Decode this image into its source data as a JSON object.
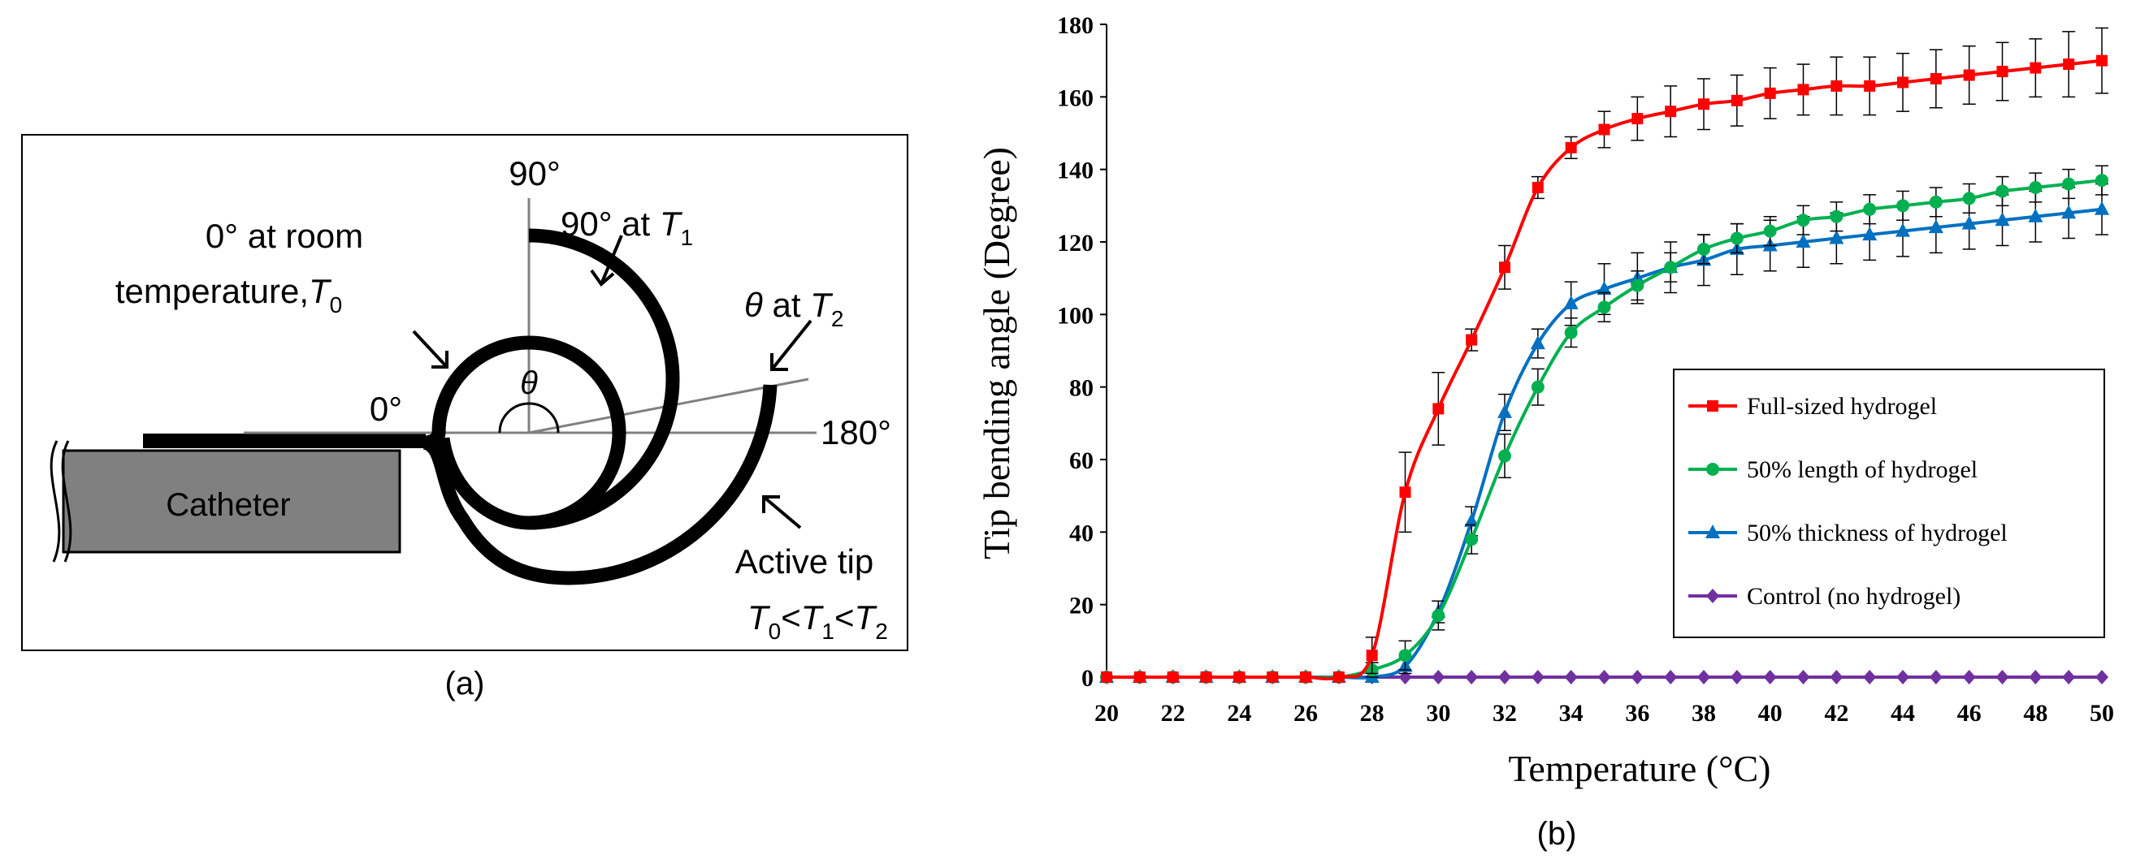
{
  "panel_a": {
    "label": "(a)",
    "deg90_top": "90°",
    "deg0": "0°",
    "deg180": "180°",
    "room_line1": "0° at room",
    "room_line2": "temperature, ",
    "room_T": "T",
    "room_sub": "0",
    "t1_prefix": "90° at ",
    "t1_T": "T",
    "t1_sub": "1",
    "t2_theta": "θ",
    "t2_mid": " at ",
    "t2_T": "T",
    "t2_sub": "2",
    "theta": "θ",
    "catheter": "Catheter",
    "active_tip": "Active tip",
    "ineq_T0": "T",
    "ineq_sub0": "0",
    "ineq_lt1": "<",
    "ineq_T1": "T",
    "ineq_sub1": "1",
    "ineq_lt2": "<",
    "ineq_T2": "T",
    "ineq_sub2": "2"
  },
  "panel_b": {
    "label": "(b)"
  },
  "chart_data": {
    "type": "line",
    "xlabel": "Temperature (°C)",
    "ylabel": "Tip bending angle (Degree)",
    "xlim": [
      20,
      50
    ],
    "ylim": [
      0,
      180
    ],
    "x_ticks": [
      "20",
      "22",
      "24",
      "26",
      "28",
      "30",
      "32",
      "34",
      "36",
      "38",
      "40",
      "42",
      "44",
      "46",
      "48",
      "50"
    ],
    "y_ticks": [
      "0",
      "20",
      "40",
      "60",
      "80",
      "100",
      "120",
      "140",
      "160",
      "180"
    ],
    "x": [
      20,
      21,
      22,
      23,
      24,
      25,
      26,
      27,
      28,
      29,
      30,
      31,
      32,
      33,
      34,
      35,
      36,
      37,
      38,
      39,
      40,
      41,
      42,
      43,
      44,
      45,
      46,
      47,
      48,
      49,
      50
    ],
    "legend_position": "right",
    "series": [
      {
        "name": "Full-sized hydrogel",
        "color": "#ff0000",
        "marker": "square",
        "values": [
          0,
          0,
          0,
          0,
          0,
          0,
          0,
          0,
          6,
          51,
          74,
          93,
          113,
          135,
          146,
          151,
          154,
          156,
          158,
          159,
          161,
          162,
          163,
          163,
          164,
          165,
          166,
          167,
          168,
          169,
          170
        ],
        "errors": [
          0,
          0,
          0,
          0,
          0,
          0,
          0,
          0,
          5,
          11,
          10,
          3,
          6,
          3,
          3,
          5,
          6,
          7,
          7,
          7,
          7,
          7,
          8,
          8,
          8,
          8,
          8,
          8,
          8,
          9,
          9
        ]
      },
      {
        "name": "50% length of hydrogel",
        "color": "#00b050",
        "marker": "circle",
        "values": [
          0,
          0,
          0,
          0,
          0,
          0,
          0,
          0,
          2,
          6,
          17,
          38,
          61,
          80,
          95,
          102,
          108,
          113,
          118,
          121,
          123,
          126,
          127,
          129,
          130,
          131,
          132,
          134,
          135,
          136,
          137
        ],
        "errors": [
          0,
          0,
          0,
          0,
          0,
          0,
          0,
          0,
          2,
          4,
          4,
          4,
          6,
          5,
          4,
          4,
          4,
          4,
          4,
          4,
          4,
          4,
          4,
          4,
          4,
          4,
          4,
          4,
          4,
          4,
          4
        ]
      },
      {
        "name": "50% thickness of hydrogel",
        "color": "#0070c0",
        "marker": "triangle",
        "values": [
          0,
          0,
          0,
          0,
          0,
          0,
          0,
          0,
          0,
          3,
          18,
          43,
          73,
          92,
          103,
          107,
          110,
          113,
          115,
          118,
          119,
          120,
          121,
          122,
          123,
          124,
          125,
          126,
          127,
          128,
          129
        ],
        "errors": [
          0,
          0,
          0,
          0,
          0,
          0,
          0,
          0,
          0,
          2,
          3,
          4,
          5,
          4,
          6,
          7,
          7,
          7,
          7,
          7,
          7,
          7,
          7,
          7,
          7,
          7,
          7,
          7,
          7,
          7,
          7
        ]
      },
      {
        "name": "Control (no hydrogel)",
        "color": "#7030a0",
        "marker": "diamond",
        "values": [
          0,
          0,
          0,
          0,
          0,
          0,
          0,
          0,
          0,
          0,
          0,
          0,
          0,
          0,
          0,
          0,
          0,
          0,
          0,
          0,
          0,
          0,
          0,
          0,
          0,
          0,
          0,
          0,
          0,
          0,
          0
        ],
        "errors": [
          0,
          0,
          0,
          0,
          0,
          0,
          0,
          0,
          0,
          0,
          0,
          0,
          0,
          0,
          0,
          0,
          0,
          0,
          0,
          0,
          0,
          0,
          0,
          0,
          0,
          0,
          0,
          0,
          0,
          0,
          0
        ]
      }
    ]
  }
}
